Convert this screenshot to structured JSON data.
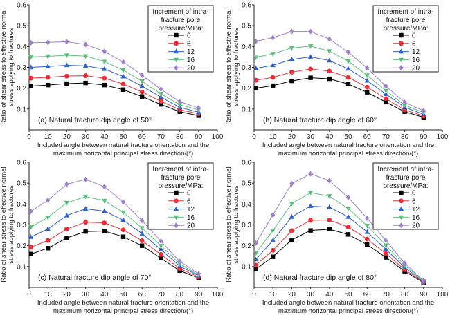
{
  "chart_data": {
    "type": "line",
    "grid": false,
    "legend_placement": "top-right",
    "x": [
      1,
      10,
      20,
      30,
      40,
      50,
      60,
      70,
      80,
      90
    ],
    "xlim": [
      0,
      100
    ],
    "ylim": [
      0,
      0.6
    ],
    "xticks": [
      "0",
      "10",
      "20",
      "30",
      "40",
      "50",
      "60",
      "70",
      "80",
      "90",
      "100"
    ],
    "yticks": [
      "0.1",
      "0.2",
      "0.3",
      "0.4",
      "0.5",
      "0.6"
    ],
    "xlabel": [
      "Included angle between natural fracture orientation and the",
      "maximum horizontal principal stress direction/(°)"
    ],
    "ylabel": [
      "Ratio of shear stress to effective normal",
      "stress applying to fractures"
    ],
    "legend_title": [
      "Increment of intra-",
      "fracture pore",
      "pressure/MPa:"
    ],
    "series_styles": [
      {
        "name": "0",
        "color": "#000000",
        "marker": "square"
      },
      {
        "name": "6",
        "color": "#e8303a",
        "marker": "circle"
      },
      {
        "name": "12",
        "color": "#3060c8",
        "marker": "triangle-up"
      },
      {
        "name": "16",
        "color": "#5fbf7f",
        "marker": "triangle-down"
      },
      {
        "name": "20",
        "color": "#a080c8",
        "marker": "diamond"
      }
    ],
    "panels": [
      {
        "title": "(a) Natural fracture dip angle of 50°",
        "series": [
          [
            0.21,
            0.215,
            0.222,
            0.225,
            0.215,
            0.193,
            0.16,
            0.122,
            0.087,
            0.068
          ],
          [
            0.248,
            0.252,
            0.258,
            0.26,
            0.248,
            0.22,
            0.182,
            0.137,
            0.097,
            0.077
          ],
          [
            0.3,
            0.304,
            0.31,
            0.307,
            0.292,
            0.256,
            0.21,
            0.157,
            0.108,
            0.085
          ],
          [
            0.35,
            0.353,
            0.358,
            0.354,
            0.328,
            0.287,
            0.233,
            0.173,
            0.12,
            0.097
          ],
          [
            0.418,
            0.42,
            0.423,
            0.41,
            0.377,
            0.326,
            0.262,
            0.195,
            0.135,
            0.105
          ]
        ]
      },
      {
        "title": "(b) Natural fracture dip angle of 60°",
        "series": [
          [
            0.2,
            0.212,
            0.235,
            0.25,
            0.245,
            0.22,
            0.18,
            0.133,
            0.087,
            0.06
          ],
          [
            0.238,
            0.252,
            0.277,
            0.292,
            0.282,
            0.252,
            0.205,
            0.15,
            0.096,
            0.067
          ],
          [
            0.295,
            0.31,
            0.338,
            0.35,
            0.333,
            0.293,
            0.236,
            0.172,
            0.108,
            0.075
          ],
          [
            0.348,
            0.365,
            0.393,
            0.402,
            0.378,
            0.33,
            0.262,
            0.188,
            0.118,
            0.083
          ],
          [
            0.425,
            0.443,
            0.472,
            0.472,
            0.436,
            0.373,
            0.297,
            0.21,
            0.132,
            0.092
          ]
        ]
      },
      {
        "title": "(c) Natural fracture dip angle of 70°",
        "series": [
          [
            0.16,
            0.188,
            0.237,
            0.268,
            0.27,
            0.243,
            0.2,
            0.14,
            0.08,
            0.045
          ],
          [
            0.193,
            0.225,
            0.28,
            0.313,
            0.31,
            0.276,
            0.224,
            0.158,
            0.09,
            0.05
          ],
          [
            0.242,
            0.28,
            0.345,
            0.377,
            0.366,
            0.323,
            0.258,
            0.182,
            0.102,
            0.056
          ],
          [
            0.29,
            0.336,
            0.406,
            0.435,
            0.416,
            0.36,
            0.285,
            0.2,
            0.113,
            0.06
          ],
          [
            0.365,
            0.418,
            0.495,
            0.518,
            0.483,
            0.41,
            0.32,
            0.222,
            0.125,
            0.065
          ]
        ]
      },
      {
        "title": "(d) Natural fracture dip angle of 80°",
        "series": [
          [
            0.088,
            0.147,
            0.228,
            0.273,
            0.279,
            0.254,
            0.205,
            0.144,
            0.077,
            0.022
          ],
          [
            0.107,
            0.178,
            0.272,
            0.322,
            0.323,
            0.29,
            0.232,
            0.162,
            0.085,
            0.024
          ],
          [
            0.134,
            0.226,
            0.338,
            0.39,
            0.385,
            0.338,
            0.266,
            0.183,
            0.095,
            0.027
          ],
          [
            0.165,
            0.273,
            0.402,
            0.454,
            0.438,
            0.378,
            0.296,
            0.202,
            0.105,
            0.03
          ],
          [
            0.213,
            0.348,
            0.498,
            0.545,
            0.512,
            0.432,
            0.332,
            0.225,
            0.115,
            0.033
          ]
        ]
      }
    ]
  }
}
